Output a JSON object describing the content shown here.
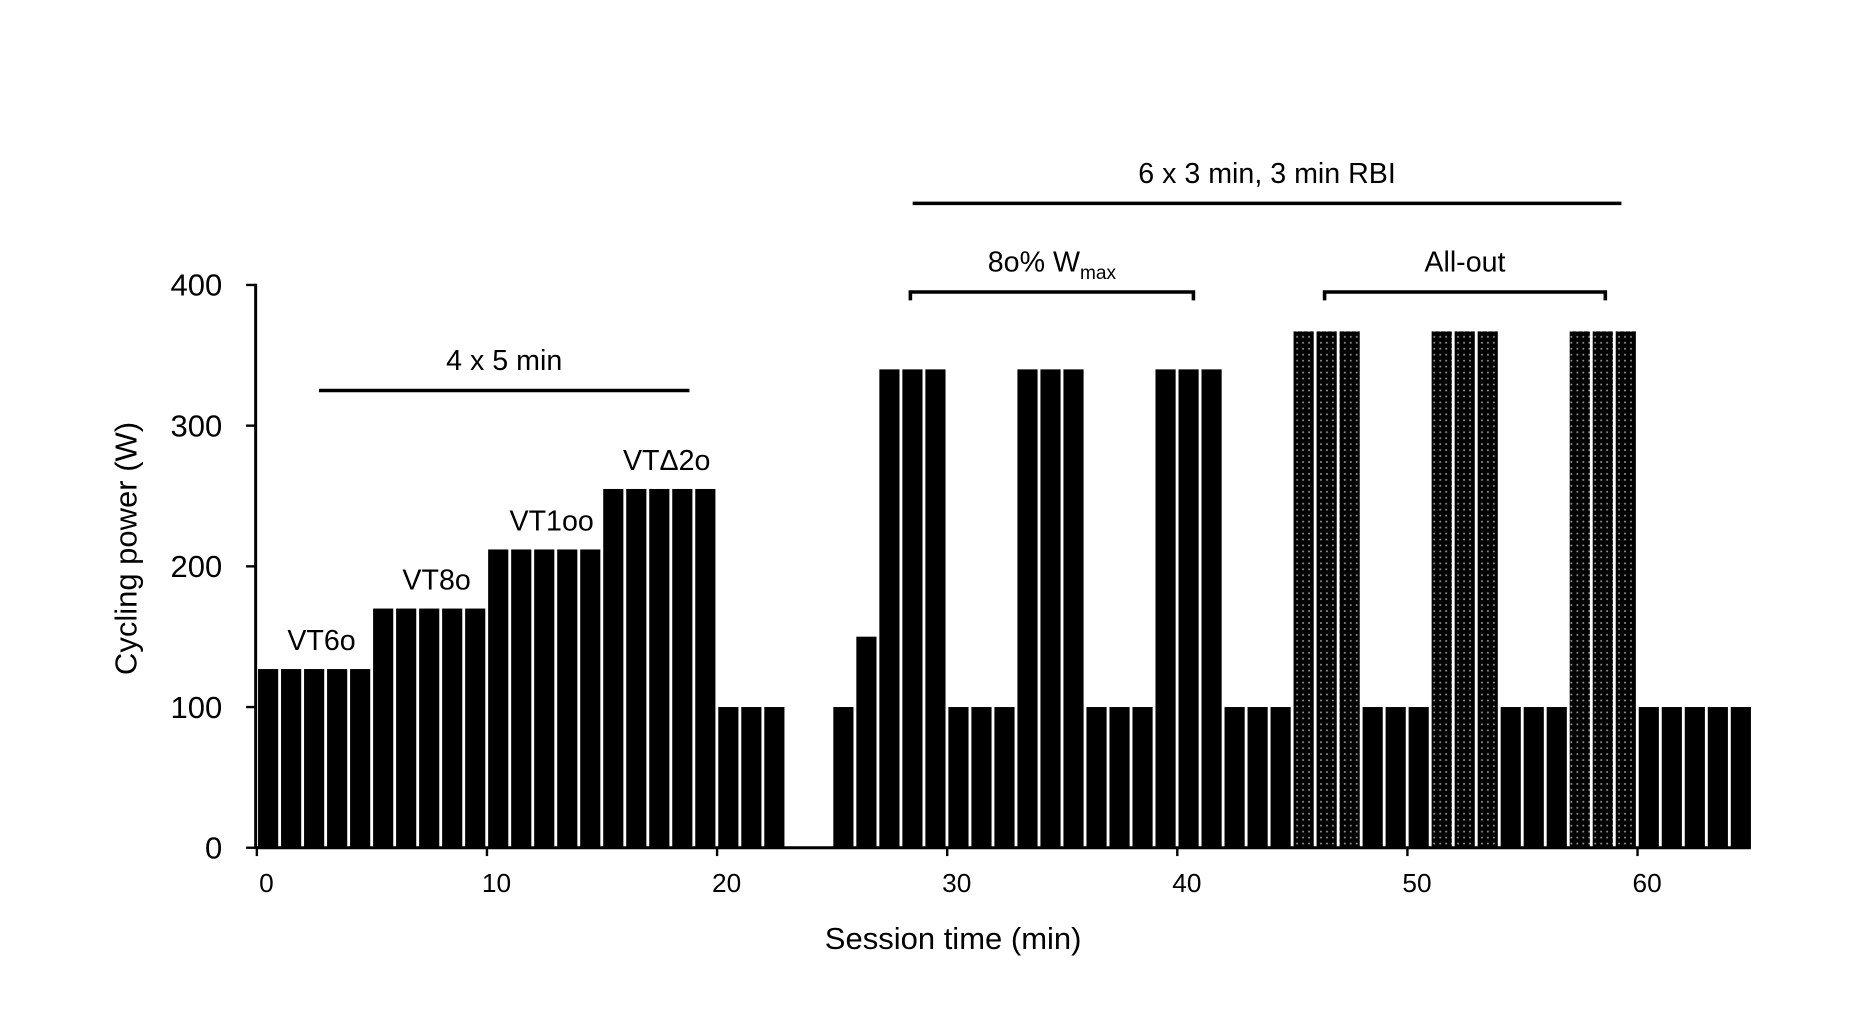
{
  "chart_data": {
    "type": "bar",
    "title": "",
    "xlabel": "Session time (min)",
    "ylabel": "Cycling power (W)",
    "xlim": [
      0,
      65
    ],
    "ylim": [
      0,
      400
    ],
    "x_ticks": [
      "0",
      "10",
      "20",
      "30",
      "40",
      "50",
      "60"
    ],
    "y_ticks": [
      "0",
      "100",
      "200",
      "300",
      "400"
    ],
    "grid": false,
    "x_minutes": [
      0,
      1,
      2,
      3,
      4,
      5,
      6,
      7,
      8,
      9,
      10,
      11,
      12,
      13,
      14,
      15,
      16,
      17,
      18,
      19,
      20,
      21,
      22,
      23,
      24,
      25,
      26,
      27,
      28,
      29,
      30,
      31,
      32,
      33,
      34,
      35,
      36,
      37,
      38,
      39,
      40,
      41,
      42,
      43,
      44,
      45,
      46,
      47,
      48,
      49,
      50,
      51,
      52,
      53,
      54,
      55,
      56,
      57,
      58,
      59,
      60,
      61,
      62,
      63,
      64
    ],
    "values": [
      127,
      127,
      127,
      127,
      127,
      170,
      170,
      170,
      170,
      170,
      212,
      212,
      212,
      212,
      212,
      255,
      255,
      255,
      255,
      255,
      100,
      100,
      100,
      0,
      0,
      100,
      150,
      340,
      340,
      340,
      100,
      100,
      100,
      340,
      340,
      340,
      100,
      100,
      100,
      340,
      340,
      340,
      100,
      100,
      100,
      367,
      367,
      367,
      100,
      100,
      100,
      367,
      367,
      367,
      100,
      100,
      100,
      367,
      367,
      367,
      100,
      100,
      100,
      100,
      100
    ],
    "all_out_minutes": [
      45,
      46,
      47,
      51,
      52,
      53,
      57,
      58,
      59
    ],
    "fill_solid": "#000000",
    "fill_all_out_dots": "#9a9a9a",
    "stage_labels": [
      {
        "text": "VT6o",
        "x_center": 2.5,
        "y": 127
      },
      {
        "text": "VT8o",
        "x_center": 7.5,
        "y": 170
      },
      {
        "text": "VT1oo",
        "x_center": 12.5,
        "y": 212
      },
      {
        "text": "VTΔ2o",
        "x_center": 17.5,
        "y": 255
      }
    ],
    "spans": [
      {
        "text": "4 x 5 min",
        "from": 2.7,
        "to": 18.8,
        "level": 325,
        "style": "line"
      },
      {
        "text": "6 x 3 min, 3 min RBI",
        "from": 28.5,
        "to": 59.3,
        "level": 458,
        "style": "line"
      },
      {
        "text": "8o% W",
        "sub": "max",
        "from": 28.4,
        "to": 40.7,
        "level": 395,
        "style": "bracket"
      },
      {
        "text": "All-out",
        "from": 46.4,
        "to": 58.6,
        "level": 395,
        "style": "bracket"
      }
    ]
  }
}
